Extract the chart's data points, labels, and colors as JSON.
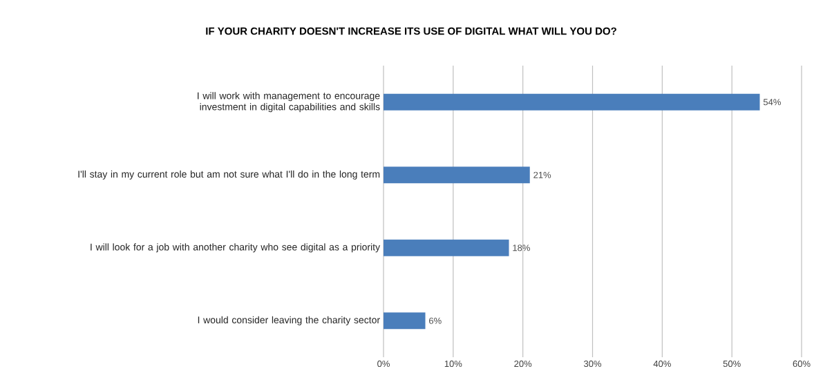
{
  "chart_data": {
    "type": "bar",
    "orientation": "horizontal",
    "title": "IF YOUR CHARITY DOESN'T INCREASE ITS USE OF DIGITAL WHAT WILL YOU DO?",
    "categories": [
      "I will work with management to encourage investment in digital capabilities and skills",
      "I'll stay in my current role but am not sure what I'll do in the long term",
      "I will look for a job with another charity who see digital as a priority",
      "I would consider leaving the charity sector"
    ],
    "values": [
      54,
      21,
      18,
      6
    ],
    "value_labels": [
      "54%",
      "21%",
      "18%",
      "6%"
    ],
    "color": "#4a7ebb",
    "xlim": [
      0,
      60
    ],
    "xticks": [
      {
        "value": 0,
        "label": "0%"
      },
      {
        "value": 10,
        "label": "10%"
      },
      {
        "value": 20,
        "label": "20%"
      },
      {
        "value": 30,
        "label": "30%"
      },
      {
        "value": 40,
        "label": "40%"
      },
      {
        "value": 50,
        "label": "50%"
      },
      {
        "value": 60,
        "label": "60%"
      }
    ],
    "grid": "x"
  }
}
